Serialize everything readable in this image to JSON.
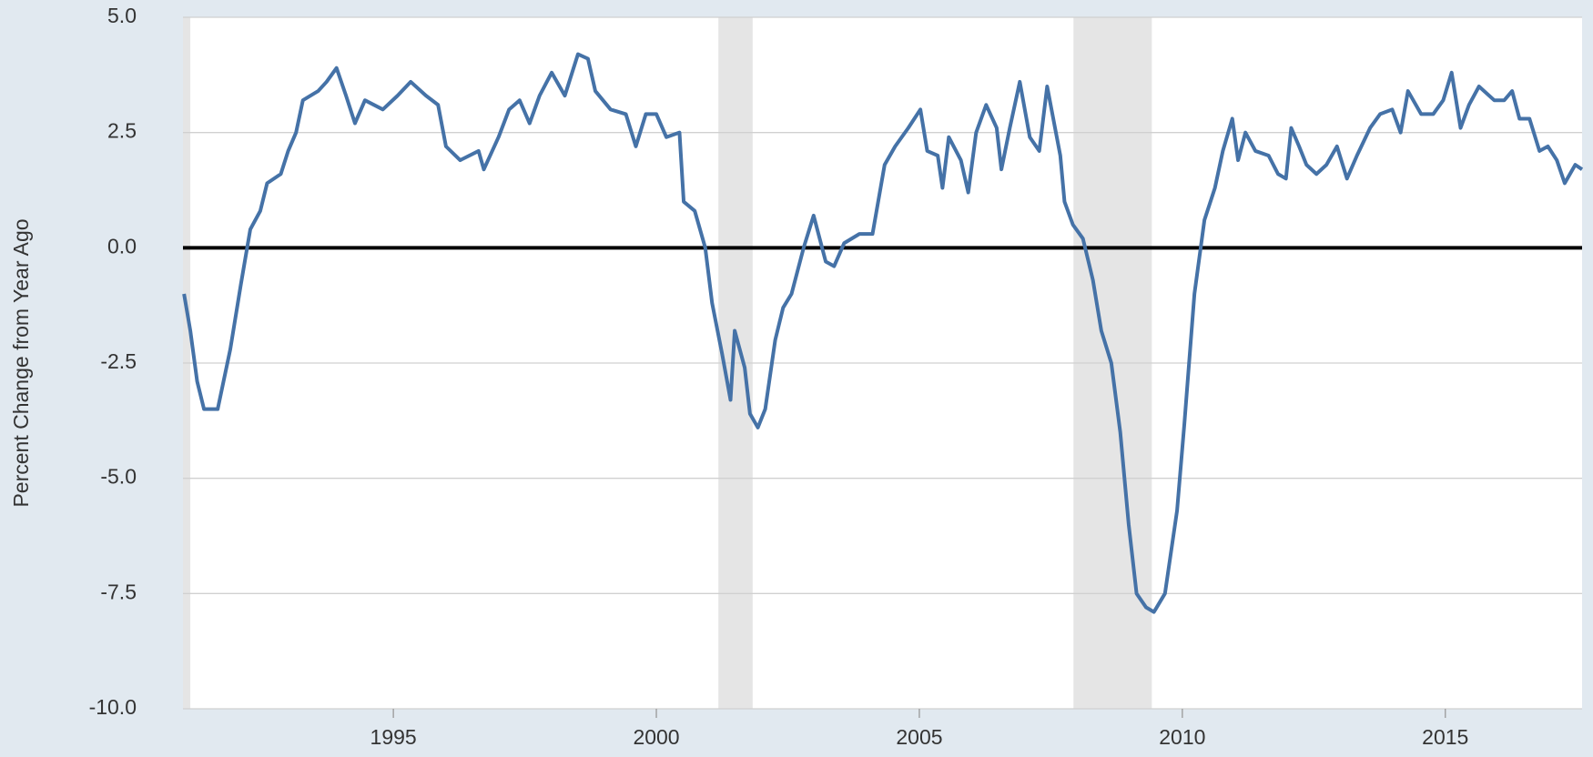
{
  "chart_data": {
    "type": "line",
    "y_label": "Percent Change from Year Ago",
    "x": [
      1991.02,
      1991.14,
      1991.27,
      1991.4,
      1991.66,
      1991.9,
      1992.1,
      1992.28,
      1992.47,
      1992.6,
      1992.86,
      1993.0,
      1993.15,
      1993.28,
      1993.57,
      1993.73,
      1993.92,
      1994.1,
      1994.27,
      1994.46,
      1994.8,
      1995.08,
      1995.33,
      1995.62,
      1995.85,
      1996.0,
      1996.27,
      1996.62,
      1996.72,
      1997.0,
      1997.2,
      1997.4,
      1997.59,
      1997.78,
      1998.01,
      1998.26,
      1998.51,
      1998.7,
      1998.84,
      1999.13,
      1999.42,
      1999.61,
      1999.8,
      2000.0,
      2000.19,
      2000.44,
      2000.52,
      2000.73,
      2000.93,
      2001.06,
      2001.25,
      2001.41,
      2001.49,
      2001.68,
      2001.78,
      2001.93,
      2002.07,
      2002.26,
      2002.41,
      2002.57,
      2002.8,
      2002.99,
      2003.22,
      2003.38,
      2003.57,
      2003.86,
      2004.11,
      2004.34,
      2004.54,
      2004.79,
      2005.02,
      2005.15,
      2005.35,
      2005.44,
      2005.56,
      2005.79,
      2005.93,
      2006.08,
      2006.27,
      2006.47,
      2006.56,
      2006.72,
      2006.91,
      2007.1,
      2007.28,
      2007.43,
      2007.68,
      2007.76,
      2007.92,
      2008.11,
      2008.3,
      2008.46,
      2008.65,
      2008.82,
      2008.98,
      2009.13,
      2009.31,
      2009.46,
      2009.67,
      2009.9,
      2010.04,
      2010.23,
      2010.42,
      2010.62,
      2010.77,
      2010.95,
      2011.06,
      2011.2,
      2011.39,
      2011.64,
      2011.82,
      2011.97,
      2012.07,
      2012.22,
      2012.36,
      2012.55,
      2012.74,
      2012.94,
      2013.13,
      2013.32,
      2013.57,
      2013.76,
      2013.99,
      2014.15,
      2014.29,
      2014.54,
      2014.77,
      2014.96,
      2015.12,
      2015.29,
      2015.45,
      2015.64,
      2015.93,
      2016.12,
      2016.27,
      2016.41,
      2016.6,
      2016.79,
      2016.95,
      2017.12,
      2017.27,
      2017.47,
      2017.6
    ],
    "series": [
      {
        "name": "Percent Change from Year Ago",
        "color": "#4572a7",
        "values": [
          -1.0,
          -1.8,
          -2.9,
          -3.5,
          -3.5,
          -2.2,
          -0.8,
          0.4,
          0.8,
          1.4,
          1.6,
          2.1,
          2.5,
          3.2,
          3.4,
          3.6,
          3.9,
          3.3,
          2.7,
          3.2,
          3.0,
          3.3,
          3.6,
          3.3,
          3.1,
          2.2,
          1.9,
          2.1,
          1.7,
          2.4,
          3.0,
          3.2,
          2.7,
          3.3,
          3.8,
          3.3,
          4.2,
          4.1,
          3.4,
          3.0,
          2.9,
          2.2,
          2.9,
          2.9,
          2.4,
          2.5,
          1.0,
          0.8,
          0.0,
          -1.2,
          -2.3,
          -3.3,
          -1.8,
          -2.6,
          -3.6,
          -3.9,
          -3.5,
          -2.0,
          -1.3,
          -1.0,
          0.0,
          0.7,
          -0.3,
          -0.4,
          0.1,
          0.3,
          0.3,
          1.8,
          2.2,
          2.6,
          3.0,
          2.1,
          2.0,
          1.3,
          2.4,
          1.9,
          1.2,
          2.5,
          3.1,
          2.6,
          1.7,
          2.6,
          3.6,
          2.4,
          2.1,
          3.5,
          2.0,
          1.0,
          0.5,
          0.2,
          -0.7,
          -1.8,
          -2.5,
          -4.0,
          -6.0,
          -7.5,
          -7.8,
          -7.9,
          -7.5,
          -5.7,
          -3.8,
          -1.0,
          0.6,
          1.3,
          2.1,
          2.8,
          1.9,
          2.5,
          2.1,
          2.0,
          1.6,
          1.5,
          2.6,
          2.2,
          1.8,
          1.6,
          1.8,
          2.2,
          1.5,
          2.0,
          2.6,
          2.9,
          3.0,
          2.5,
          3.4,
          2.9,
          2.9,
          3.2,
          3.8,
          2.6,
          3.1,
          3.5,
          3.2,
          3.2,
          3.4,
          2.8,
          2.8,
          2.1,
          2.2,
          1.9,
          1.4,
          1.8,
          1.7
        ]
      }
    ],
    "recessions": [
      [
        1991.0,
        1991.14
      ],
      [
        2001.18,
        2001.83
      ],
      [
        2007.93,
        2009.42
      ]
    ],
    "reference_line": 0,
    "xlim": [
      1991.0,
      2017.6
    ],
    "xticks": [
      1995,
      2000,
      2005,
      2010,
      2015
    ],
    "ylim": [
      -10,
      5
    ],
    "yticks": [
      {
        "value": -10,
        "label": "-10.0"
      },
      -7.5,
      {
        "value": -5,
        "label": "-5.0"
      },
      -2.5,
      {
        "value": 0,
        "label": "0.0"
      },
      2.5,
      {
        "value": 5,
        "label": "5.0"
      }
    ],
    "grid": true
  }
}
